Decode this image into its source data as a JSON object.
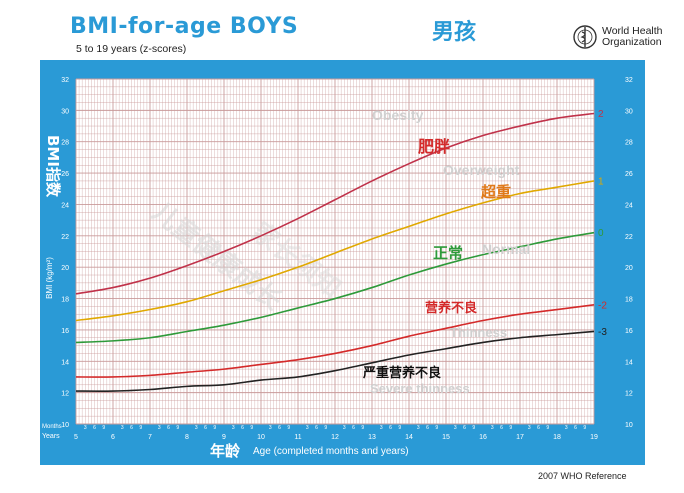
{
  "header": {
    "title": "BMI-for-age  BOYS",
    "title_cn": "男孩",
    "subtitle": "5 to 19 years (z-scores)",
    "org_line1": "World Health",
    "org_line2": "Organization"
  },
  "footer": {
    "reference": "2007  WHO Reference"
  },
  "labels": {
    "months_label": "Months",
    "years_label": "Years",
    "month_ticks": [
      "3",
      "6",
      "9"
    ],
    "ylabel_cn": "BMI指数",
    "ylabel": "BMI (kg/m²)",
    "xlabel_cn": "年龄",
    "xlabel": "Age (completed months and years)"
  },
  "annotations": {
    "obesity": "Obesity",
    "obesity_cn": "肥胖",
    "overweight": "Overweight",
    "overweight_cn": "超重",
    "normal": "Normal",
    "normal_cn": "正常",
    "thinness": "Thinness",
    "thinness_cn": "营养不良",
    "severe": "Severe thinness",
    "severe_cn": "严重营养不良"
  },
  "colors": {
    "panel": "#2a9ad6",
    "grid": "#c99a9a",
    "z2": "#c0324a",
    "z1": "#e0a800",
    "z0": "#2e9a3a",
    "zm2": "#d42a2a",
    "zm3": "#222222",
    "cn_obesity": "#d42a2a",
    "cn_overweight": "#e07a1a",
    "cn_normal": "#2e9a3a",
    "cn_thinness": "#d42a2a",
    "cn_severe": "#111111",
    "watermark": "#c8c8c8"
  },
  "chart_data": {
    "type": "line",
    "xlim": [
      5,
      19
    ],
    "ylim": [
      10,
      32
    ],
    "x_ticks": [
      5,
      6,
      7,
      8,
      9,
      10,
      11,
      12,
      13,
      14,
      15,
      16,
      17,
      18,
      19
    ],
    "y_ticks": [
      10,
      12,
      14,
      16,
      18,
      20,
      22,
      24,
      26,
      28,
      30,
      32
    ],
    "grid": true,
    "series": [
      {
        "name": "2",
        "x": [
          5,
          6,
          7,
          8,
          9,
          10,
          11,
          12,
          13,
          14,
          15,
          16,
          17,
          18,
          19
        ],
        "values": [
          18.3,
          18.7,
          19.3,
          20.1,
          21.0,
          22.0,
          23.1,
          24.3,
          25.5,
          26.6,
          27.6,
          28.4,
          29.0,
          29.5,
          29.8
        ]
      },
      {
        "name": "1",
        "x": [
          5,
          6,
          7,
          8,
          9,
          10,
          11,
          12,
          13,
          14,
          15,
          16,
          17,
          18,
          19
        ],
        "values": [
          16.6,
          16.9,
          17.3,
          17.8,
          18.5,
          19.2,
          20.0,
          20.9,
          21.8,
          22.6,
          23.4,
          24.1,
          24.7,
          25.1,
          25.5
        ]
      },
      {
        "name": "0",
        "x": [
          5,
          6,
          7,
          8,
          9,
          10,
          11,
          12,
          13,
          14,
          15,
          16,
          17,
          18,
          19
        ],
        "values": [
          15.2,
          15.3,
          15.5,
          15.9,
          16.3,
          16.8,
          17.4,
          18.0,
          18.7,
          19.5,
          20.2,
          20.8,
          21.3,
          21.8,
          22.2
        ]
      },
      {
        "name": "-2",
        "x": [
          5,
          6,
          7,
          8,
          9,
          10,
          11,
          12,
          13,
          14,
          15,
          16,
          17,
          18,
          19
        ],
        "values": [
          13.0,
          13.0,
          13.1,
          13.3,
          13.5,
          13.8,
          14.1,
          14.5,
          15.0,
          15.6,
          16.1,
          16.6,
          17.0,
          17.3,
          17.6
        ]
      },
      {
        "name": "-3",
        "x": [
          5,
          6,
          7,
          8,
          9,
          10,
          11,
          12,
          13,
          14,
          15,
          16,
          17,
          18,
          19
        ],
        "values": [
          12.1,
          12.1,
          12.2,
          12.4,
          12.5,
          12.8,
          13.0,
          13.4,
          13.9,
          14.4,
          14.8,
          15.2,
          15.5,
          15.7,
          15.9
        ]
      }
    ]
  }
}
